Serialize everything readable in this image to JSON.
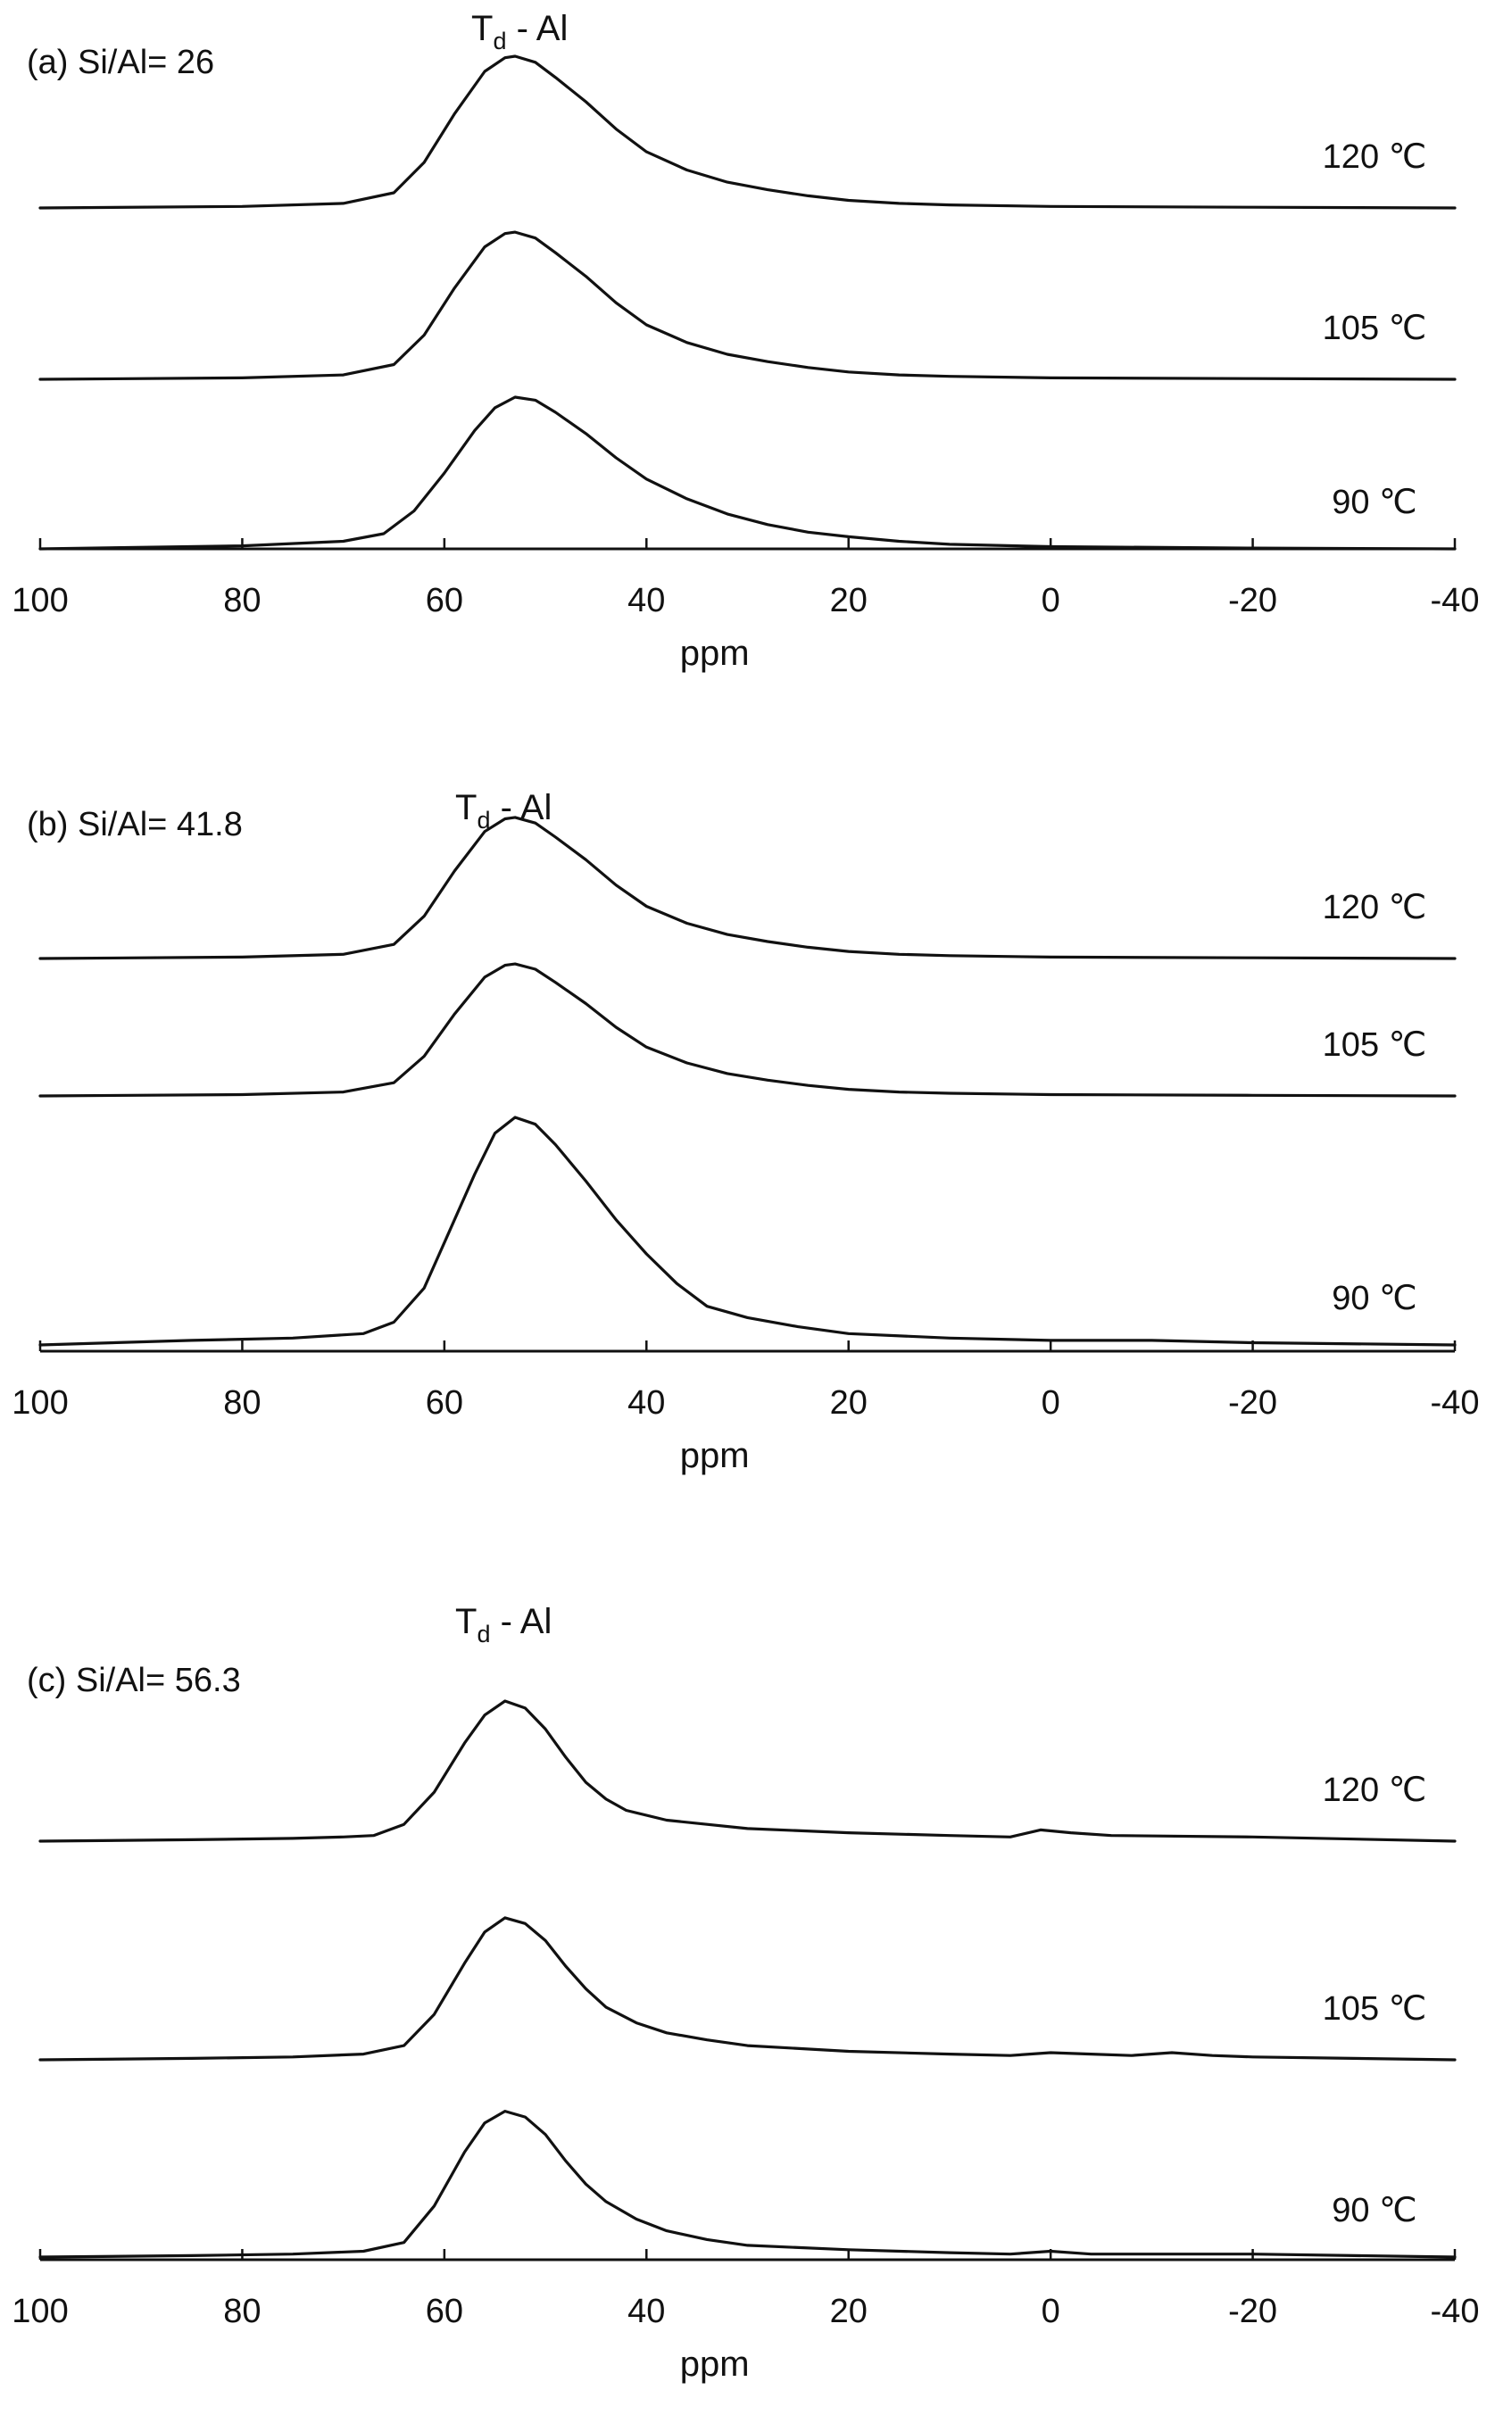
{
  "chart_data": [
    {
      "type": "line",
      "panel_label": "(a) Si/Al= 26",
      "peak_label": {
        "main": "T",
        "sub": "d",
        "rest": " - Al"
      },
      "xlabel": "ppm",
      "xlim": [
        100,
        -40
      ],
      "xticks": [
        100,
        80,
        60,
        40,
        20,
        0,
        -20,
        -40
      ],
      "tick_labels": [
        "100",
        "80",
        "60",
        "40",
        "20",
        "0",
        "-20",
        "-40"
      ],
      "series": [
        {
          "name": "120 ℃",
          "center": 53,
          "height": 1.0,
          "baseline_rank": 2,
          "points": [
            [
              100,
              0
            ],
            [
              80,
              0.01
            ],
            [
              70,
              0.03
            ],
            [
              65,
              0.1
            ],
            [
              62,
              0.3
            ],
            [
              59,
              0.62
            ],
            [
              56,
              0.9
            ],
            [
              54,
              0.99
            ],
            [
              53,
              1.0
            ],
            [
              51,
              0.96
            ],
            [
              49,
              0.86
            ],
            [
              46,
              0.7
            ],
            [
              43,
              0.52
            ],
            [
              40,
              0.37
            ],
            [
              36,
              0.25
            ],
            [
              32,
              0.17
            ],
            [
              28,
              0.12
            ],
            [
              24,
              0.08
            ],
            [
              20,
              0.05
            ],
            [
              15,
              0.03
            ],
            [
              10,
              0.02
            ],
            [
              0,
              0.01
            ],
            [
              -20,
              0.005
            ],
            [
              -40,
              0
            ]
          ]
        },
        {
          "name": "105 ℃",
          "center": 53,
          "height": 0.97,
          "baseline_rank": 1,
          "points": [
            [
              100,
              0
            ],
            [
              80,
              0.01
            ],
            [
              70,
              0.03
            ],
            [
              65,
              0.1
            ],
            [
              62,
              0.3
            ],
            [
              59,
              0.62
            ],
            [
              56,
              0.9
            ],
            [
              54,
              0.99
            ],
            [
              53,
              1.0
            ],
            [
              51,
              0.96
            ],
            [
              49,
              0.86
            ],
            [
              46,
              0.7
            ],
            [
              43,
              0.52
            ],
            [
              40,
              0.37
            ],
            [
              36,
              0.25
            ],
            [
              32,
              0.17
            ],
            [
              28,
              0.12
            ],
            [
              24,
              0.08
            ],
            [
              20,
              0.05
            ],
            [
              15,
              0.03
            ],
            [
              10,
              0.02
            ],
            [
              0,
              0.01
            ],
            [
              -20,
              0.005
            ],
            [
              -40,
              0
            ]
          ]
        },
        {
          "name": "90 ℃",
          "center": 52,
          "height": 1.0,
          "baseline_rank": 0,
          "points": [
            [
              100,
              0
            ],
            [
              80,
              0.02
            ],
            [
              70,
              0.05
            ],
            [
              66,
              0.1
            ],
            [
              63,
              0.25
            ],
            [
              60,
              0.5
            ],
            [
              57,
              0.78
            ],
            [
              55,
              0.93
            ],
            [
              53,
              1.0
            ],
            [
              51,
              0.98
            ],
            [
              49,
              0.9
            ],
            [
              46,
              0.76
            ],
            [
              43,
              0.6
            ],
            [
              40,
              0.46
            ],
            [
              36,
              0.33
            ],
            [
              32,
              0.23
            ],
            [
              28,
              0.16
            ],
            [
              24,
              0.11
            ],
            [
              20,
              0.08
            ],
            [
              15,
              0.05
            ],
            [
              10,
              0.03
            ],
            [
              0,
              0.015
            ],
            [
              -20,
              0.005
            ],
            [
              -40,
              0
            ]
          ]
        }
      ]
    },
    {
      "type": "line",
      "panel_label": "(b) Si/Al= 41.8",
      "peak_label": {
        "main": "T",
        "sub": "d",
        "rest": " - Al"
      },
      "xlabel": "ppm",
      "xlim": [
        100,
        -40
      ],
      "xticks": [
        100,
        80,
        60,
        40,
        20,
        0,
        -20,
        -40
      ],
      "tick_labels": [
        "100",
        "80",
        "60",
        "40",
        "20",
        "0",
        "-20",
        "-40"
      ],
      "series": [
        {
          "name": "120 ℃",
          "center": 53,
          "height": 0.62,
          "baseline_rank": 2,
          "points": [
            [
              100,
              0
            ],
            [
              80,
              0.01
            ],
            [
              70,
              0.03
            ],
            [
              65,
              0.1
            ],
            [
              62,
              0.3
            ],
            [
              59,
              0.62
            ],
            [
              56,
              0.9
            ],
            [
              54,
              0.99
            ],
            [
              53,
              1.0
            ],
            [
              51,
              0.96
            ],
            [
              49,
              0.86
            ],
            [
              46,
              0.7
            ],
            [
              43,
              0.52
            ],
            [
              40,
              0.37
            ],
            [
              36,
              0.25
            ],
            [
              32,
              0.17
            ],
            [
              28,
              0.12
            ],
            [
              24,
              0.08
            ],
            [
              20,
              0.05
            ],
            [
              15,
              0.03
            ],
            [
              10,
              0.02
            ],
            [
              0,
              0.01
            ],
            [
              -20,
              0.005
            ],
            [
              -40,
              0
            ]
          ]
        },
        {
          "name": "105 ℃",
          "center": 53,
          "height": 0.58,
          "baseline_rank": 1,
          "points": [
            [
              100,
              0
            ],
            [
              80,
              0.01
            ],
            [
              70,
              0.03
            ],
            [
              65,
              0.1
            ],
            [
              62,
              0.3
            ],
            [
              59,
              0.62
            ],
            [
              56,
              0.9
            ],
            [
              54,
              0.99
            ],
            [
              53,
              1.0
            ],
            [
              51,
              0.96
            ],
            [
              49,
              0.86
            ],
            [
              46,
              0.7
            ],
            [
              43,
              0.52
            ],
            [
              40,
              0.37
            ],
            [
              36,
              0.25
            ],
            [
              32,
              0.17
            ],
            [
              28,
              0.12
            ],
            [
              24,
              0.08
            ],
            [
              20,
              0.05
            ],
            [
              15,
              0.03
            ],
            [
              10,
              0.02
            ],
            [
              0,
              0.01
            ],
            [
              -20,
              0.005
            ],
            [
              -40,
              0
            ]
          ]
        },
        {
          "name": "90 ℃",
          "center": 53,
          "height": 1.0,
          "baseline_rank": 0,
          "points": [
            [
              100,
              0
            ],
            [
              85,
              0.02
            ],
            [
              75,
              0.03
            ],
            [
              68,
              0.05
            ],
            [
              65,
              0.1
            ],
            [
              62,
              0.25
            ],
            [
              60,
              0.45
            ],
            [
              57,
              0.75
            ],
            [
              55,
              0.93
            ],
            [
              53,
              1.0
            ],
            [
              51,
              0.97
            ],
            [
              49,
              0.88
            ],
            [
              46,
              0.72
            ],
            [
              43,
              0.55
            ],
            [
              40,
              0.4
            ],
            [
              37,
              0.27
            ],
            [
              34,
              0.17
            ],
            [
              30,
              0.12
            ],
            [
              25,
              0.08
            ],
            [
              20,
              0.05
            ],
            [
              10,
              0.03
            ],
            [
              0,
              0.02
            ],
            [
              -10,
              0.02
            ],
            [
              -20,
              0.01
            ],
            [
              -40,
              0
            ]
          ]
        }
      ]
    },
    {
      "type": "line",
      "panel_label": "(c) Si/Al= 56.3",
      "peak_label": {
        "main": "T",
        "sub": "d",
        "rest": " - Al"
      },
      "xlabel": "ppm",
      "xlim": [
        100,
        -40
      ],
      "xticks": [
        100,
        80,
        60,
        40,
        20,
        0,
        -20,
        -40
      ],
      "tick_labels": [
        "100",
        "80",
        "60",
        "40",
        "20",
        "0",
        "-20",
        "-40"
      ],
      "series": [
        {
          "name": "120 ℃",
          "center": 54,
          "height": 0.73,
          "baseline_rank": 2,
          "points": [
            [
              100,
              0
            ],
            [
              85,
              0.01
            ],
            [
              75,
              0.02
            ],
            [
              70,
              0.03
            ],
            [
              67,
              0.04
            ],
            [
              64,
              0.12
            ],
            [
              61,
              0.35
            ],
            [
              58,
              0.7
            ],
            [
              56,
              0.9
            ],
            [
              54,
              1.0
            ],
            [
              52,
              0.95
            ],
            [
              50,
              0.8
            ],
            [
              48,
              0.6
            ],
            [
              46,
              0.42
            ],
            [
              44,
              0.3
            ],
            [
              42,
              0.22
            ],
            [
              38,
              0.15
            ],
            [
              34,
              0.12
            ],
            [
              30,
              0.09
            ],
            [
              20,
              0.06
            ],
            [
              10,
              0.04
            ],
            [
              4,
              0.03
            ],
            [
              1,
              0.08
            ],
            [
              -2,
              0.06
            ],
            [
              -6,
              0.04
            ],
            [
              -20,
              0.03
            ],
            [
              -40,
              0
            ]
          ]
        },
        {
          "name": "105 ℃",
          "center": 53,
          "height": 0.74,
          "baseline_rank": 1,
          "points": [
            [
              100,
              0
            ],
            [
              85,
              0.01
            ],
            [
              75,
              0.02
            ],
            [
              68,
              0.04
            ],
            [
              64,
              0.1
            ],
            [
              61,
              0.32
            ],
            [
              58,
              0.68
            ],
            [
              56,
              0.9
            ],
            [
              54,
              1.0
            ],
            [
              52,
              0.96
            ],
            [
              50,
              0.84
            ],
            [
              48,
              0.66
            ],
            [
              46,
              0.5
            ],
            [
              44,
              0.37
            ],
            [
              41,
              0.26
            ],
            [
              38,
              0.19
            ],
            [
              34,
              0.14
            ],
            [
              30,
              0.1
            ],
            [
              20,
              0.06
            ],
            [
              10,
              0.04
            ],
            [
              4,
              0.03
            ],
            [
              0,
              0.05
            ],
            [
              -4,
              0.04
            ],
            [
              -8,
              0.03
            ],
            [
              -12,
              0.05
            ],
            [
              -16,
              0.03
            ],
            [
              -20,
              0.02
            ],
            [
              -40,
              0
            ]
          ]
        },
        {
          "name": "90 ℃",
          "center": 53,
          "height": 0.76,
          "baseline_rank": 0,
          "points": [
            [
              100,
              0
            ],
            [
              85,
              0.01
            ],
            [
              75,
              0.02
            ],
            [
              68,
              0.04
            ],
            [
              64,
              0.1
            ],
            [
              61,
              0.35
            ],
            [
              58,
              0.72
            ],
            [
              56,
              0.92
            ],
            [
              54,
              1.0
            ],
            [
              52,
              0.96
            ],
            [
              50,
              0.84
            ],
            [
              48,
              0.66
            ],
            [
              46,
              0.5
            ],
            [
              44,
              0.38
            ],
            [
              41,
              0.26
            ],
            [
              38,
              0.18
            ],
            [
              34,
              0.12
            ],
            [
              30,
              0.08
            ],
            [
              20,
              0.05
            ],
            [
              10,
              0.03
            ],
            [
              4,
              0.02
            ],
            [
              0,
              0.04
            ],
            [
              -4,
              0.02
            ],
            [
              -20,
              0.02
            ],
            [
              -40,
              0
            ]
          ]
        }
      ]
    }
  ]
}
